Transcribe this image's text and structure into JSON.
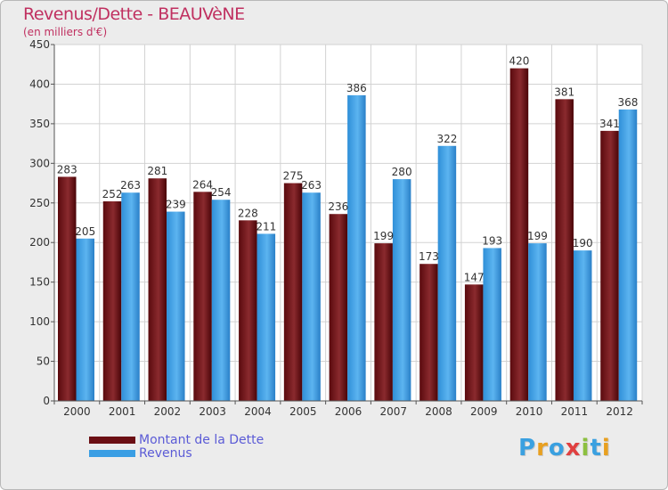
{
  "title": "Revenus/Dette - BEAUVèNE",
  "subtitle": "(en milliers d'€)",
  "logo_text": "Proxiti",
  "colors": {
    "debt": "#6b0f14",
    "revenue": "#3a9ee4",
    "title": "#c03060",
    "legend_text": "#5b5bd6"
  },
  "chart_data": {
    "type": "bar",
    "title": "Revenus/Dette - BEAUVèNE",
    "ylabel": "(en milliers d'€)",
    "xlabel": "",
    "categories": [
      "2000",
      "2001",
      "2002",
      "2003",
      "2004",
      "2005",
      "2006",
      "2007",
      "2008",
      "2009",
      "2010",
      "2011",
      "2012"
    ],
    "series": [
      {
        "name": "Montant de la Dette",
        "color": "#6b0f14",
        "values": [
          283,
          252,
          281,
          264,
          228,
          275,
          236,
          199,
          173,
          147,
          420,
          381,
          341
        ]
      },
      {
        "name": "Revenus",
        "color": "#3a9ee4",
        "values": [
          205,
          263,
          239,
          254,
          211,
          263,
          386,
          280,
          322,
          193,
          199,
          190,
          368
        ]
      }
    ],
    "ylim": [
      0,
      450
    ],
    "yticks": [
      0,
      50,
      100,
      150,
      200,
      250,
      300,
      350,
      400,
      450
    ],
    "grid": true,
    "legend_position": "bottom-left"
  }
}
